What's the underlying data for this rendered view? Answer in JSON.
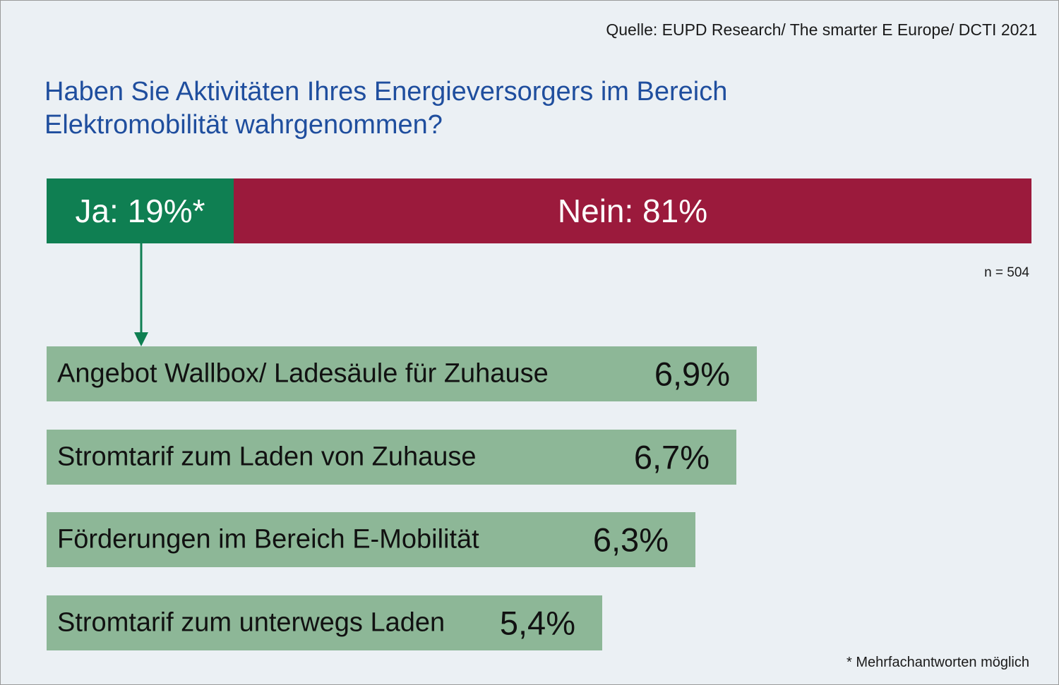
{
  "source": "Quelle: EUPD Research/ The smarter E Europe/ DCTI 2021",
  "chart_data": {
    "type": "bar",
    "title": "Haben Sie Aktivitäten Ihres Energieversorgers im Bereich Elektromobilität wahrgenommen?",
    "split": {
      "segments": [
        {
          "name": "Ja",
          "value": 19,
          "label": "Ja: 19%*",
          "color": "#0f7f52"
        },
        {
          "name": "Nein",
          "value": 81,
          "label": "Nein: 81%",
          "color": "#9b1a3c"
        }
      ],
      "sample_label": "n = 504"
    },
    "categories": [
      "Angebot Wallbox/ Ladesäule für Zuhause",
      "Stromtarif zum Laden von Zuhause",
      "Förderungen im Bereich E-Mobilität",
      "Stromtarif zum unterwegs Laden"
    ],
    "values": [
      6.9,
      6.7,
      6.3,
      5.4
    ],
    "value_labels": [
      "6,9%",
      "6,7%",
      "6,3%",
      "5,4%"
    ],
    "bar_color": "#8db797",
    "arrow_color": "#0f7f52",
    "footnote": "* Mehrfachantworten möglich"
  }
}
